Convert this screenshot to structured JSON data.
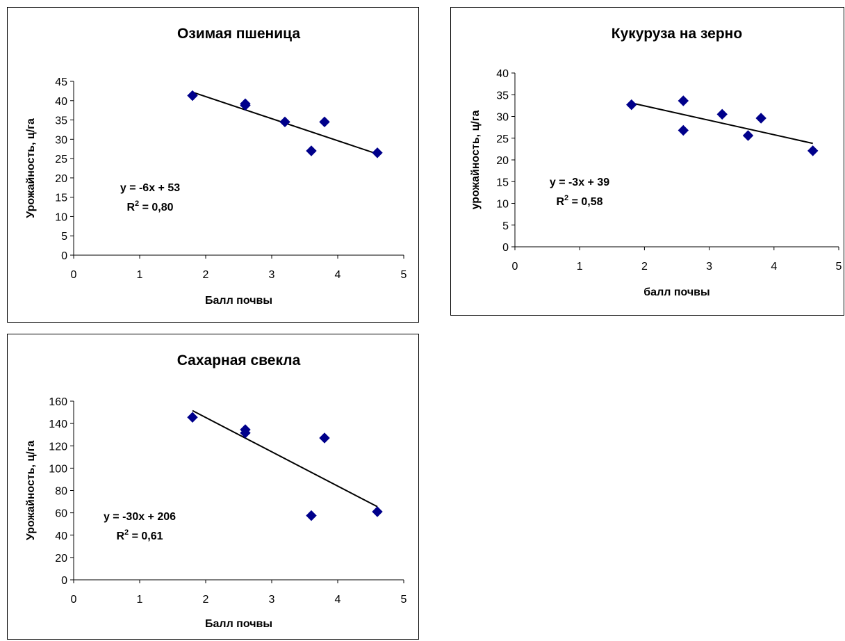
{
  "chart_data": [
    {
      "type": "scatter",
      "title": "Озимая пшеница",
      "xlabel": "Балл почвы",
      "ylabel": "Урожайность, ц/га",
      "xlim": [
        0,
        5
      ],
      "ylim": [
        0,
        45
      ],
      "xticks": [
        "0",
        "1",
        "2",
        "3",
        "4",
        "5"
      ],
      "yticks": [
        "0",
        "5",
        "10",
        "15",
        "20",
        "25",
        "30",
        "35",
        "40",
        "45"
      ],
      "series": [
        {
          "color": "#00008b",
          "marker": "diamond",
          "x": [
            1.8,
            2.6,
            2.6,
            3.2,
            3.6,
            3.8,
            4.6
          ],
          "y": [
            41.3,
            39.2,
            38.8,
            34.5,
            27.0,
            34.5,
            26.5
          ]
        }
      ],
      "trendline": {
        "x": [
          1.8,
          4.6
        ],
        "y": [
          42.2,
          26.2
        ],
        "color": "#000000"
      },
      "equation": "y = -6x + 53",
      "r2_label": "R",
      "r2_sup": "2",
      "r2_value": " = 0,80",
      "grid": false
    },
    {
      "type": "scatter",
      "title": "Кукуруза на зерно",
      "xlabel": "балл почвы",
      "ylabel": "урожайность, ц/га",
      "xlim": [
        0,
        5
      ],
      "ylim": [
        0,
        40
      ],
      "xticks": [
        "0",
        "1",
        "2",
        "3",
        "4",
        "5"
      ],
      "yticks": [
        "0",
        "5",
        "10",
        "15",
        "20",
        "25",
        "30",
        "35",
        "40"
      ],
      "series": [
        {
          "color": "#00008b",
          "marker": "diamond",
          "x": [
            1.8,
            2.6,
            2.6,
            3.2,
            3.6,
            3.8,
            4.6
          ],
          "y": [
            32.7,
            33.6,
            26.8,
            30.5,
            25.6,
            29.6,
            22.1
          ]
        }
      ],
      "trendline": {
        "x": [
          1.8,
          4.6
        ],
        "y": [
          33.1,
          23.8
        ],
        "color": "#000000"
      },
      "equation": "y = -3x + 39",
      "r2_label": "R",
      "r2_sup": "2",
      "r2_value": " = 0,58",
      "grid": false
    },
    {
      "type": "scatter",
      "title": "Сахарная свекла",
      "xlabel": "Балл почвы",
      "ylabel": "Урожайность, ц/га",
      "xlim": [
        0,
        5
      ],
      "ylim": [
        0,
        160
      ],
      "xticks": [
        "0",
        "1",
        "2",
        "3",
        "4",
        "5"
      ],
      "yticks": [
        "0",
        "20",
        "40",
        "60",
        "80",
        "100",
        "120",
        "140",
        "160"
      ],
      "series": [
        {
          "color": "#00008b",
          "marker": "diamond",
          "x": [
            1.8,
            2.6,
            2.6,
            3.6,
            3.8,
            4.6
          ],
          "y": [
            145.5,
            134.5,
            131.5,
            57.5,
            127.0,
            61.0
          ]
        }
      ],
      "trendline": {
        "x": [
          1.8,
          4.6
        ],
        "y": [
          151.5,
          65.5
        ],
        "color": "#000000"
      },
      "equation": "y = -30x + 206",
      "r2_label": "R",
      "r2_sup": "2",
      "r2_value": " = 0,61",
      "grid": false
    }
  ]
}
